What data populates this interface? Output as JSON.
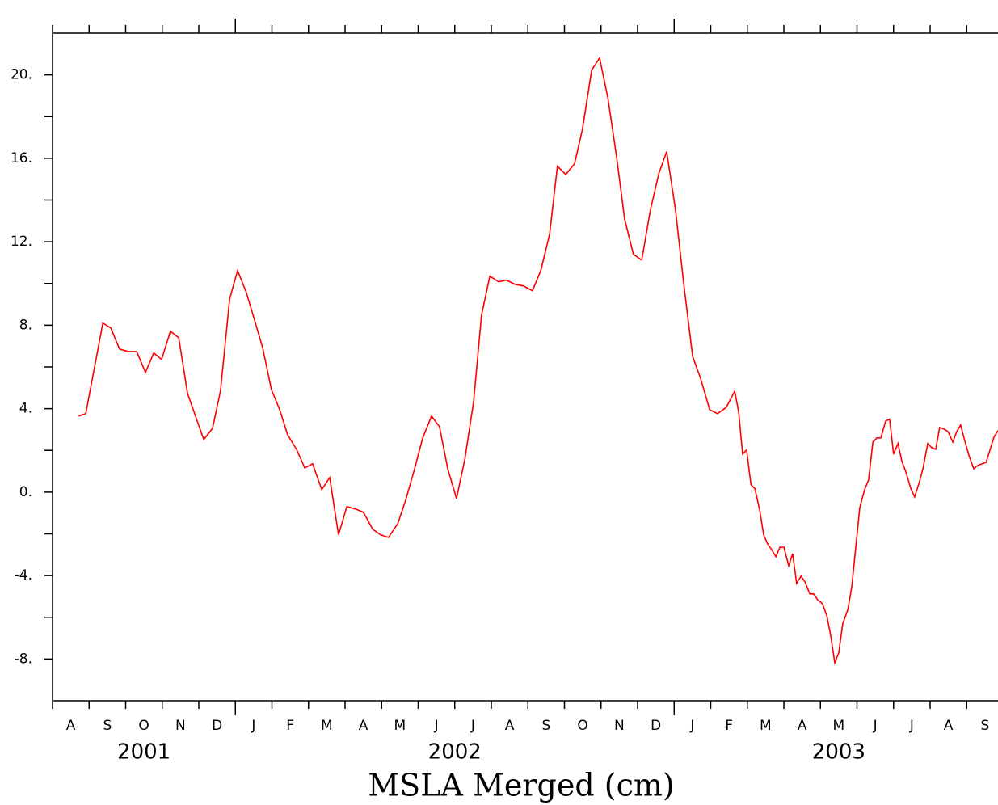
{
  "chart_data": {
    "type": "line",
    "x_label": "MSLA Merged (cm)",
    "months": [
      "A",
      "S",
      "O",
      "N",
      "D",
      "J",
      "F",
      "M",
      "A",
      "M",
      "J",
      "J",
      "A",
      "S",
      "O",
      "N",
      "D",
      "J",
      "F",
      "M",
      "A",
      "M",
      "J",
      "J",
      "A",
      "S"
    ],
    "years": [
      "2001",
      "2002",
      "2003"
    ],
    "xlim": [
      2001.5833,
      2003.738
    ],
    "ylim": [
      -10,
      22
    ],
    "yticks": [
      {
        "value": -8,
        "label": "-8."
      },
      {
        "value": -4,
        "label": "-4."
      },
      {
        "value": 0,
        "label": "0."
      },
      {
        "value": 4,
        "label": "4."
      },
      {
        "value": 8,
        "label": "8."
      },
      {
        "value": 12,
        "label": "12."
      },
      {
        "value": 16,
        "label": "16."
      },
      {
        "value": 20,
        "label": "20."
      }
    ],
    "yminor_ticks": [
      -6,
      -2,
      2,
      6,
      10,
      14,
      18
    ],
    "series": [
      {
        "color": "#ff0000",
        "x": [
          2001.642,
          2001.659,
          2001.698,
          2001.716,
          2001.736,
          2001.755,
          2001.775,
          2001.795,
          2001.814,
          2001.832,
          2001.852,
          2001.871,
          2001.891,
          2001.909,
          2001.928,
          2001.948,
          2001.966,
          2001.987,
          2002.005,
          2002.025,
          2002.044,
          2002.062,
          2002.082,
          2002.101,
          2002.119,
          2002.14,
          2002.158,
          2002.176,
          2002.197,
          2002.215,
          2002.235,
          2002.254,
          2002.274,
          2002.292,
          2002.313,
          2002.331,
          2002.349,
          2002.37,
          2002.388,
          2002.407,
          2002.427,
          2002.447,
          2002.465,
          2002.484,
          2002.504,
          2002.523,
          2002.543,
          2002.561,
          2002.58,
          2002.6,
          2002.618,
          2002.637,
          2002.657,
          2002.677,
          2002.696,
          2002.716,
          2002.734,
          2002.753,
          2002.773,
          2002.791,
          2002.812,
          2002.83,
          2002.849,
          2002.869,
          2002.887,
          2002.907,
          2002.926,
          2002.946,
          2002.965,
          2002.983,
          2003.003,
          2003.022,
          2003.042,
          2003.06,
          2003.081,
          2003.099,
          2003.119,
          2003.138,
          2003.147,
          2003.156,
          2003.165,
          2003.175,
          2003.184,
          2003.195,
          2003.204,
          2003.213,
          2003.222,
          2003.232,
          2003.241,
          2003.25,
          2003.261,
          2003.27,
          2003.279,
          2003.289,
          2003.298,
          2003.309,
          2003.318,
          2003.327,
          2003.338,
          2003.348,
          2003.357,
          2003.366,
          2003.375,
          2003.384,
          2003.396,
          2003.405,
          2003.414,
          2003.423,
          2003.434,
          2003.443,
          2003.453,
          2003.462,
          2003.471,
          2003.482,
          2003.491,
          2003.5,
          2003.51,
          2003.519,
          2003.528,
          2003.539,
          2003.548,
          2003.558,
          2003.567,
          2003.578,
          2003.587,
          2003.596,
          2003.605,
          2003.615,
          2003.624,
          2003.635,
          2003.644,
          2003.653,
          2003.663,
          2003.672,
          2003.683,
          2003.692,
          2003.711,
          2003.729,
          2003.738
        ],
        "values": [
          3.64,
          3.76,
          8.1,
          7.87,
          6.86,
          6.74,
          6.74,
          5.74,
          6.67,
          6.36,
          7.71,
          7.4,
          4.73,
          3.64,
          2.52,
          3.06,
          4.84,
          9.26,
          10.62,
          9.57,
          8.22,
          6.94,
          4.92,
          3.95,
          2.75,
          2.02,
          1.16,
          1.36,
          0.12,
          0.7,
          -2.05,
          -0.7,
          -0.81,
          -0.97,
          -1.78,
          -2.05,
          -2.17,
          -1.51,
          -0.39,
          1.01,
          2.6,
          3.64,
          3.14,
          1.12,
          -0.31,
          1.59,
          4.34,
          8.49,
          10.35,
          10.08,
          10.16,
          9.96,
          9.88,
          9.65,
          10.62,
          12.36,
          15.62,
          15.23,
          15.74,
          17.4,
          20.23,
          20.81,
          18.88,
          16.05,
          13.1,
          11.4,
          11.12,
          13.53,
          15.27,
          16.32,
          13.53,
          9.96,
          6.51,
          5.47,
          3.95,
          3.76,
          4.07,
          4.84,
          3.84,
          1.82,
          2.02,
          0.35,
          0.16,
          -0.89,
          -2.05,
          -2.48,
          -2.75,
          -3.1,
          -2.64,
          -2.64,
          -3.53,
          -2.95,
          -4.38,
          -4.03,
          -4.3,
          -4.88,
          -4.88,
          -5.16,
          -5.35,
          -5.93,
          -6.9,
          -8.18,
          -7.71,
          -6.32,
          -5.62,
          -4.5,
          -2.6,
          -0.74,
          0.12,
          0.58,
          2.4,
          2.6,
          2.6,
          3.41,
          3.49,
          1.82,
          2.33,
          1.47,
          0.97,
          0.19,
          -0.23,
          0.43,
          1.12,
          2.33,
          2.13,
          2.05,
          3.1,
          3.02,
          2.91,
          2.4,
          2.91,
          3.22,
          2.4,
          1.74,
          1.12,
          1.28,
          1.43,
          2.64,
          2.95
        ]
      }
    ]
  }
}
